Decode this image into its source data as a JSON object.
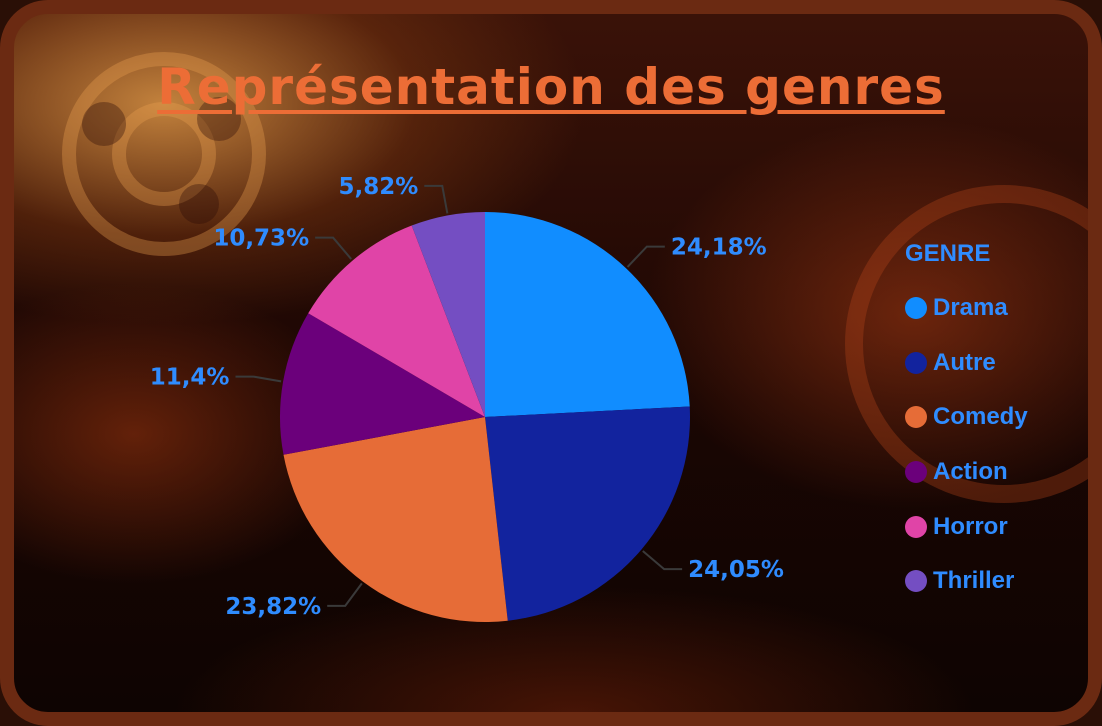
{
  "title": "Représentation des genres",
  "chart_data": {
    "type": "pie",
    "title": "Représentation des genres",
    "legend_title": "GENRE",
    "legend_position": "right",
    "start_angle": "top",
    "direction": "clockwise",
    "slices": [
      {
        "name": "Drama",
        "value": 24.18,
        "label": "24,18%",
        "color": "#118dff"
      },
      {
        "name": "Autre",
        "value": 24.05,
        "label": "24,05%",
        "color": "#12239e"
      },
      {
        "name": "Comedy",
        "value": 23.82,
        "label": "23,82%",
        "color": "#e66c37"
      },
      {
        "name": "Action",
        "value": 11.4,
        "label": "11,4%",
        "color": "#6b007b"
      },
      {
        "name": "Horror",
        "value": 10.73,
        "label": "10,73%",
        "color": "#e044a7"
      },
      {
        "name": "Thriller",
        "value": 5.82,
        "label": "5,82%",
        "color": "#744ec2"
      }
    ]
  }
}
